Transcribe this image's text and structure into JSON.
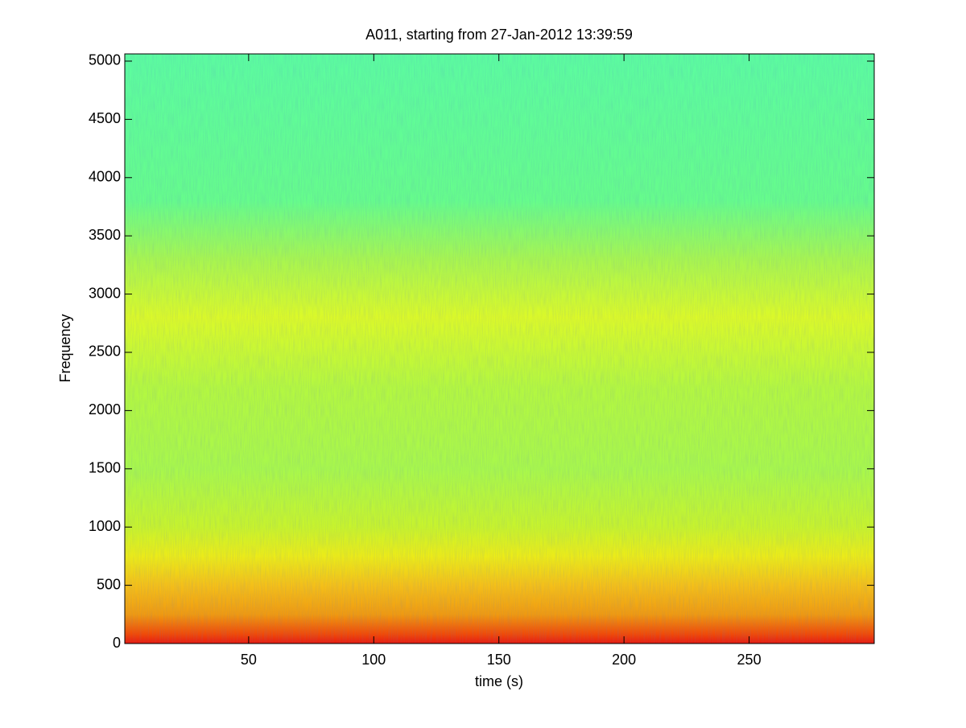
{
  "chart_data": {
    "type": "spectrogram",
    "title": "A011, starting from 27-Jan-2012 13:39:59",
    "xlabel": "time (s)",
    "ylabel": "Frequency",
    "xlim": [
      0.5,
      300
    ],
    "ylim": [
      0,
      5062
    ],
    "xticks": [
      50,
      100,
      150,
      200,
      250
    ],
    "yticks": [
      0,
      500,
      1000,
      1500,
      2000,
      2500,
      3000,
      3500,
      4000,
      4500,
      5000
    ],
    "colorscale": {
      "frequencies": [
        0,
        80,
        250,
        500,
        750,
        1000,
        1500,
        2200,
        2800,
        3300,
        3800,
        5062
      ],
      "colors": [
        "#e81a10",
        "#f04a08",
        "#f09a10",
        "#f5c018",
        "#ecec18",
        "#c8f42c",
        "#a8f84c",
        "#b4f840",
        "#dcfa28",
        "#a8f650",
        "#66fc8c",
        "#5cfca0"
      ]
    }
  }
}
